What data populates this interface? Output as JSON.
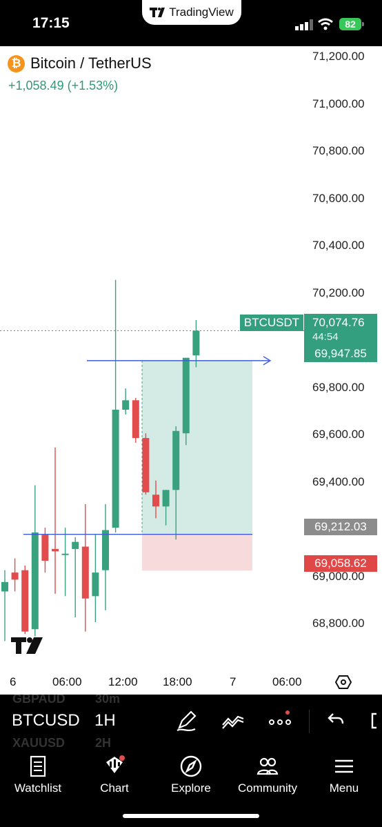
{
  "status": {
    "time": "17:15",
    "app_name": "TradingView",
    "battery": "82"
  },
  "header": {
    "symbol_title": "Bitcoin / TetherUS",
    "change": "+1,058.49 (+1.53%)",
    "icon_letter": "₿"
  },
  "price_axis": [
    "71,200.00",
    "71,000.00",
    "70,800.00",
    "70,600.00",
    "70,400.00",
    "70,200.00",
    "69,800.00",
    "69,600.00",
    "69,400.00",
    "69,000.00",
    "68,800.00"
  ],
  "current": {
    "symbol": "BTCUSDT",
    "price": "70,074.76",
    "countdown": "44:54"
  },
  "badges": {
    "target": "69,947.85",
    "entry": "69,212.03",
    "stop": "69,058.62"
  },
  "time_axis": [
    "6",
    "06:00",
    "12:00",
    "18:00",
    "7",
    "06:00"
  ],
  "toolbar": {
    "symbol": "BTCUSD",
    "interval": "1H",
    "ghost_above_symbol": "GBPAUD",
    "ghost_above_interval": "30m",
    "ghost_below_symbol": "XAUUSD",
    "ghost_below_interval": "2H"
  },
  "nav": [
    {
      "label": "Watchlist",
      "icon": "watchlist-icon"
    },
    {
      "label": "Chart",
      "icon": "chart-icon"
    },
    {
      "label": "Explore",
      "icon": "compass-icon"
    },
    {
      "label": "Community",
      "icon": "community-icon"
    },
    {
      "label": "Menu",
      "icon": "menu-icon"
    }
  ],
  "colors": {
    "up": "#3aa17f",
    "down": "#e24c4c",
    "profit": "#cfe8e2",
    "loss": "#f5d6d8"
  },
  "chart_data": {
    "type": "candlestick",
    "ylim": [
      68650,
      71280
    ],
    "candles": [
      {
        "o": 68970,
        "h": 69060,
        "l": 68760,
        "c": 69010
      },
      {
        "o": 69050,
        "h": 69110,
        "l": 68970,
        "c": 69020
      },
      {
        "o": 69060,
        "h": 69080,
        "l": 68790,
        "c": 68800
      },
      {
        "o": 68810,
        "h": 69420,
        "l": 68780,
        "c": 69220
      },
      {
        "o": 69210,
        "h": 69240,
        "l": 69050,
        "c": 69100
      },
      {
        "o": 69150,
        "h": 69580,
        "l": 68960,
        "c": 69140
      },
      {
        "o": 69130,
        "h": 69240,
        "l": 68950,
        "c": 69130
      },
      {
        "o": 69150,
        "h": 69200,
        "l": 68860,
        "c": 69180
      },
      {
        "o": 69160,
        "h": 69340,
        "l": 68800,
        "c": 68940
      },
      {
        "o": 68950,
        "h": 69210,
        "l": 68840,
        "c": 69050
      },
      {
        "o": 69060,
        "h": 69340,
        "l": 68890,
        "c": 69230
      },
      {
        "o": 69240,
        "h": 70290,
        "l": 69220,
        "c": 69740
      },
      {
        "o": 69740,
        "h": 69830,
        "l": 69720,
        "c": 69780
      },
      {
        "o": 69780,
        "h": 69790,
        "l": 69600,
        "c": 69620
      },
      {
        "o": 69620,
        "h": 69640,
        "l": 69380,
        "c": 69390
      },
      {
        "o": 69380,
        "h": 69440,
        "l": 69280,
        "c": 69330
      },
      {
        "o": 69330,
        "h": 69400,
        "l": 69250,
        "c": 69400
      },
      {
        "o": 69400,
        "h": 69670,
        "l": 69190,
        "c": 69650
      },
      {
        "o": 69640,
        "h": 69960,
        "l": 69590,
        "c": 69960
      },
      {
        "o": 69970,
        "h": 70120,
        "l": 69920,
        "c": 70074.76
      }
    ],
    "lines": {
      "target": 69947.85,
      "entry": 69212.03,
      "stop": 69058.62
    }
  }
}
